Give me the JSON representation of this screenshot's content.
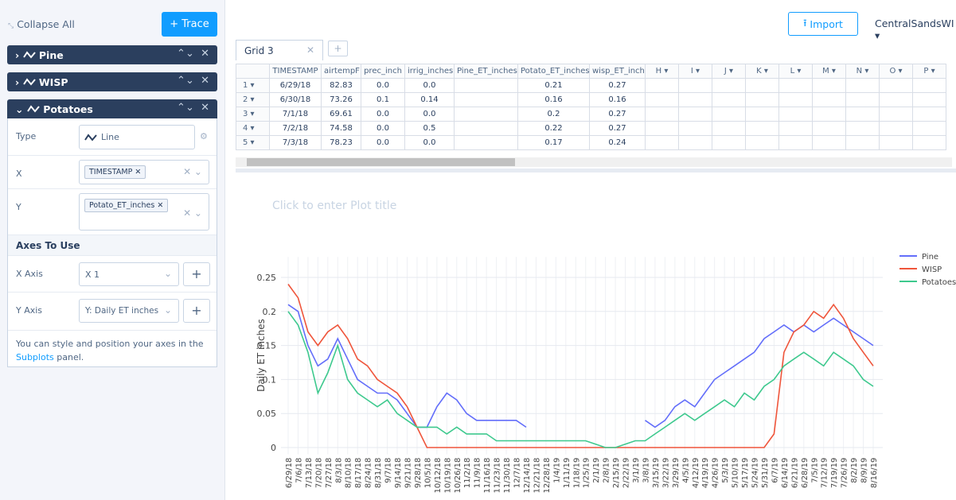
{
  "sidebar": {
    "collapse_all": "Collapse All",
    "trace_button": "+ Trace",
    "traces": [
      "Pine",
      "WISP",
      "Potatoes"
    ],
    "fields": {
      "type_label": "Type",
      "type_value": "Line",
      "x_label": "X",
      "x_value": "TIMESTAMP",
      "y_label": "Y",
      "y_value": "Potato_ET_inches",
      "axes_header": "Axes To Use",
      "x_axis_label": "X Axis",
      "x_axis_value": "X 1",
      "y_axis_label": "Y Axis",
      "y_axis_value": "Y: Daily ET inches",
      "help_text": "You can style and position your axes in the",
      "help_link": "Subplots",
      "help_tail": "panel."
    }
  },
  "header": {
    "import": "Import",
    "account": "CentralSandsWI"
  },
  "tab": "Grid 3",
  "table": {
    "columns": [
      "TIMESTAMP",
      "airtempF",
      "prec_inch",
      "irrig_inches",
      "Pine_ET_inches",
      "Potato_ET_inches",
      "wisp_ET_inch",
      "H",
      "I",
      "J",
      "K",
      "L",
      "M",
      "N",
      "O",
      "P"
    ],
    "row_labels": [
      "1",
      "2",
      "3",
      "4",
      "5"
    ],
    "rows": [
      [
        "6/29/18",
        "82.83",
        "0.0",
        "0.0",
        null,
        "0.21",
        "0.27"
      ],
      [
        "6/30/18",
        "73.26",
        "0.1",
        "0.14",
        null,
        "0.16",
        "0.16"
      ],
      [
        "7/1/18",
        "69.61",
        "0.0",
        "0.0",
        null,
        "0.2",
        "0.27"
      ],
      [
        "7/2/18",
        "74.58",
        "0.0",
        "0.5",
        null,
        "0.22",
        "0.27"
      ],
      [
        "7/3/18",
        "78.23",
        "0.0",
        "0.0",
        null,
        "0.17",
        "0.24"
      ]
    ]
  },
  "chart_data": {
    "type": "line",
    "title": "Click to enter Plot title",
    "y_label": "Daily ET inches",
    "categories": [
      "6/29/18",
      "7/6/18",
      "7/13/18",
      "7/20/18",
      "7/27/18",
      "8/3/18",
      "8/10/18",
      "8/17/18",
      "8/24/18",
      "8/31/18",
      "9/7/18",
      "9/14/18",
      "9/21/18",
      "9/28/18",
      "10/5/18",
      "10/12/18",
      "10/19/18",
      "10/26/18",
      "11/2/18",
      "11/9/18",
      "11/16/18",
      "11/23/18",
      "11/30/18",
      "12/7/18",
      "12/14/18",
      "12/21/18",
      "12/28/18",
      "1/4/19",
      "1/11/19",
      "1/18/19",
      "1/25/19",
      "2/1/19",
      "2/8/19",
      "2/15/19",
      "2/22/19",
      "3/1/19",
      "3/8/19",
      "3/15/19",
      "3/22/19",
      "3/29/19",
      "4/5/19",
      "4/12/19",
      "4/19/19",
      "4/26/19",
      "5/3/19",
      "5/10/19",
      "5/17/19",
      "5/24/19",
      "5/31/19",
      "6/7/19",
      "6/14/19",
      "6/21/19",
      "6/28/19",
      "7/5/19",
      "7/12/19",
      "7/19/19",
      "7/26/19",
      "8/2/19",
      "8/9/19",
      "8/16/19"
    ],
    "series": [
      {
        "name": "Pine",
        "color": "#636efa",
        "values": [
          0.21,
          0.2,
          0.15,
          0.12,
          0.13,
          0.16,
          0.13,
          0.1,
          0.09,
          0.08,
          0.08,
          0.07,
          0.05,
          0.03,
          0.03,
          0.06,
          0.08,
          0.07,
          0.05,
          0.04,
          0.04,
          0.04,
          0.04,
          0.04,
          0.03,
          null,
          null,
          null,
          null,
          null,
          null,
          null,
          null,
          null,
          null,
          null,
          0.04,
          0.03,
          0.04,
          0.06,
          0.07,
          0.06,
          0.08,
          0.1,
          0.11,
          0.12,
          0.13,
          0.14,
          0.16,
          0.17,
          0.18,
          0.17,
          0.18,
          0.17,
          0.18,
          0.19,
          0.18,
          0.17,
          0.16,
          0.15
        ]
      },
      {
        "name": "WISP",
        "color": "#ef553b",
        "values": [
          0.24,
          0.22,
          0.17,
          0.15,
          0.17,
          0.18,
          0.16,
          0.13,
          0.12,
          0.1,
          0.09,
          0.08,
          0.06,
          0.03,
          0,
          0,
          0,
          0,
          0,
          0,
          0,
          0,
          0,
          0,
          0,
          0,
          0,
          0,
          0,
          0,
          0,
          0,
          0,
          0,
          0,
          0,
          0,
          0,
          0,
          0,
          0,
          0,
          0,
          0,
          0,
          0,
          0,
          0,
          0,
          0.02,
          0.14,
          0.17,
          0.18,
          0.2,
          0.19,
          0.21,
          0.19,
          0.16,
          0.14,
          0.12
        ]
      },
      {
        "name": "Potatoes",
        "color": "#3ec98e",
        "values": [
          0.2,
          0.18,
          0.14,
          0.08,
          0.11,
          0.15,
          0.1,
          0.08,
          0.07,
          0.06,
          0.07,
          0.05,
          0.04,
          0.03,
          0.03,
          0.03,
          0.02,
          0.03,
          0.02,
          0.02,
          0.02,
          0.01,
          0.01,
          0.01,
          0.01,
          0.01,
          0.01,
          0.01,
          0.01,
          0.01,
          0.01,
          0.005,
          0,
          0,
          0.005,
          0.01,
          0.01,
          0.02,
          0.03,
          0.04,
          0.05,
          0.04,
          0.05,
          0.06,
          0.07,
          0.06,
          0.08,
          0.07,
          0.09,
          0.1,
          0.12,
          0.13,
          0.14,
          0.13,
          0.12,
          0.14,
          0.13,
          0.12,
          0.1,
          0.09
        ]
      }
    ],
    "ylim": [
      -0.01,
      0.28
    ],
    "yticks": [
      0,
      0.05,
      0.1,
      0.15,
      0.2,
      0.25
    ],
    "grid": true,
    "legend": "top-right"
  }
}
